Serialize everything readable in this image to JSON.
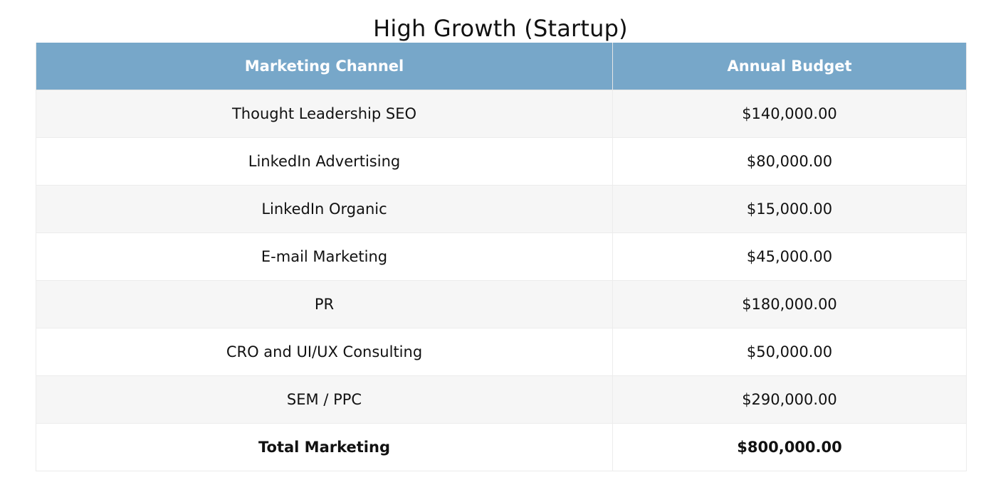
{
  "title": "High Growth (Startup)",
  "table": {
    "headers": [
      "Marketing Channel",
      "Annual Budget"
    ],
    "rows": [
      {
        "channel": "Thought Leadership SEO",
        "budget": "$140,000.00"
      },
      {
        "channel": "LinkedIn Advertising",
        "budget": "$80,000.00"
      },
      {
        "channel": "LinkedIn Organic",
        "budget": "$15,000.00"
      },
      {
        "channel": "E-mail Marketing",
        "budget": "$45,000.00"
      },
      {
        "channel": "PR",
        "budget": "$180,000.00"
      },
      {
        "channel": "CRO and UI/UX Consulting",
        "budget": "$50,000.00"
      },
      {
        "channel": "SEM / PPC",
        "budget": "$290,000.00"
      }
    ],
    "total": {
      "channel": "Total Marketing",
      "budget": "$800,000.00"
    }
  },
  "colors": {
    "header_bg": "#77a7c9",
    "header_text": "#ffffff",
    "row_alt_bg": "#f6f6f6",
    "row_bg": "#ffffff"
  }
}
